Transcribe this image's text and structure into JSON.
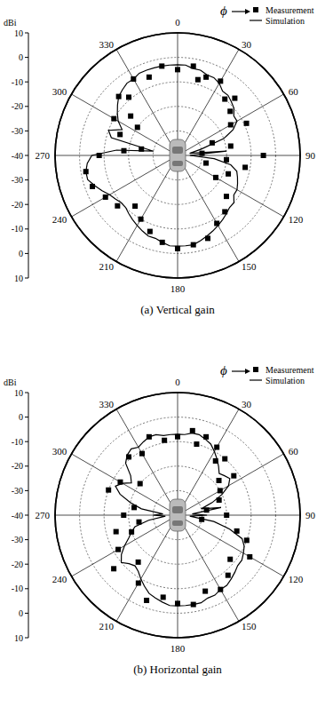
{
  "chart_data": [
    {
      "type": "polar",
      "title": "(a) Vertical gain",
      "angle_label": "ϕ",
      "ylabel": "dBi",
      "xlim": [
        0,
        360
      ],
      "xticks": [
        0,
        30,
        60,
        90,
        120,
        150,
        180,
        210,
        240,
        270,
        300,
        330
      ],
      "ylim": [
        -40,
        10
      ],
      "yticks": [
        -40,
        -30,
        -20,
        -10,
        0,
        10
      ],
      "grid": true,
      "legend": "upper right",
      "series": [
        {
          "name": "Measurement",
          "type": "scatter",
          "marker": "square",
          "color": "#000000",
          "x": [
            0,
            10,
            15,
            20,
            30,
            40,
            45,
            50,
            60,
            65,
            70,
            80,
            85,
            90,
            95,
            100,
            105,
            110,
            120,
            130,
            140,
            150,
            160,
            170,
            180,
            190,
            200,
            210,
            220,
            230,
            240,
            250,
            260,
            270,
            275,
            280,
            290,
            300,
            305,
            310,
            315,
            320,
            330,
            340,
            350
          ],
          "values": [
            -5,
            -3,
            -8,
            -6,
            -5,
            -10,
            -7,
            -12,
            -15,
            -9,
            -25,
            -18,
            -30,
            -5,
            -20,
            -12,
            -28,
            -18,
            -22,
            -14,
            -10,
            -8,
            -4,
            -3,
            -2,
            -4,
            -7,
            -10,
            -13,
            -8,
            -6,
            -3,
            -2,
            -8,
            -18,
            -25,
            -15,
            -10,
            -20,
            -15,
            -6,
            -9,
            -4,
            -6,
            -3
          ]
        },
        {
          "name": "Simulation",
          "type": "line",
          "line_style": "solid",
          "color": "#000000",
          "x": [
            0,
            5,
            10,
            15,
            20,
            25,
            30,
            35,
            40,
            45,
            50,
            55,
            60,
            65,
            70,
            75,
            80,
            85,
            90,
            95,
            100,
            105,
            110,
            115,
            120,
            125,
            130,
            135,
            140,
            145,
            150,
            155,
            160,
            165,
            170,
            175,
            180,
            185,
            190,
            195,
            200,
            205,
            210,
            215,
            220,
            225,
            230,
            235,
            240,
            245,
            250,
            255,
            260,
            265,
            270,
            275,
            280,
            285,
            290,
            295,
            300,
            305,
            310,
            315,
            320,
            325,
            330,
            335,
            340,
            345,
            350,
            355
          ],
          "values": [
            -3,
            -3,
            -4,
            -4,
            -5,
            -5,
            -6,
            -8,
            -8,
            -9,
            -10,
            -12,
            -12,
            -15,
            -20,
            -30,
            -35,
            -20,
            -35,
            -25,
            -18,
            -15,
            -14,
            -13,
            -12,
            -12,
            -10,
            -10,
            -9,
            -8,
            -7,
            -6,
            -5,
            -4,
            -3,
            -3,
            -3,
            -3,
            -4,
            -5,
            -5,
            -6,
            -7,
            -8,
            -9,
            -10,
            -10,
            -9,
            -8,
            -6,
            -4,
            -2,
            -2,
            -3,
            -5,
            -15,
            -30,
            -12,
            -10,
            -15,
            -12,
            -10,
            -8,
            -6,
            -5,
            -4,
            -4,
            -3,
            -3,
            -3,
            -3,
            -3
          ]
        }
      ]
    },
    {
      "type": "polar",
      "title": "(b) Horizontal gain",
      "angle_label": "ϕ",
      "ylabel": "dBi",
      "xlim": [
        0,
        360
      ],
      "xticks": [
        0,
        30,
        60,
        90,
        120,
        150,
        180,
        210,
        240,
        270,
        300,
        330
      ],
      "ylim": [
        -40,
        10
      ],
      "yticks": [
        -40,
        -30,
        -20,
        -10,
        0,
        10
      ],
      "grid": true,
      "legend": "upper right",
      "series": [
        {
          "name": "Measurement",
          "type": "scatter",
          "marker": "square",
          "color": "#000000",
          "x": [
            0,
            10,
            15,
            20,
            30,
            35,
            40,
            50,
            55,
            60,
            70,
            80,
            90,
            100,
            105,
            110,
            120,
            130,
            140,
            150,
            160,
            170,
            180,
            190,
            200,
            210,
            220,
            230,
            240,
            250,
            255,
            260,
            270,
            280,
            290,
            300,
            310,
            320,
            330,
            340,
            350
          ],
          "values": [
            -8,
            -5,
            -10,
            -6,
            -8,
            -13,
            -10,
            -18,
            -12,
            -20,
            -22,
            -28,
            -20,
            -30,
            -15,
            -10,
            -6,
            -12,
            -8,
            -5,
            -7,
            -3,
            -4,
            -6,
            -3,
            -8,
            -15,
            -6,
            -12,
            -20,
            -14,
            -24,
            -18,
            -22,
            -10,
            -13,
            -20,
            -9,
            -11,
            -6,
            -9
          ]
        },
        {
          "name": "Simulation",
          "type": "line",
          "line_style": "solid",
          "color": "#000000",
          "x": [
            0,
            5,
            10,
            15,
            20,
            25,
            30,
            35,
            40,
            45,
            50,
            55,
            60,
            65,
            70,
            75,
            80,
            85,
            90,
            95,
            100,
            105,
            110,
            115,
            120,
            125,
            130,
            135,
            140,
            145,
            150,
            155,
            160,
            165,
            170,
            175,
            180,
            185,
            190,
            195,
            200,
            205,
            210,
            215,
            220,
            225,
            230,
            235,
            240,
            245,
            250,
            255,
            260,
            265,
            270,
            275,
            280,
            285,
            290,
            295,
            300,
            305,
            310,
            315,
            320,
            325,
            330,
            335,
            340,
            345,
            350,
            355
          ],
          "values": [
            -7,
            -7,
            -6,
            -6,
            -7,
            -8,
            -10,
            -12,
            -14,
            -16,
            -15,
            -14,
            -16,
            -20,
            -25,
            -30,
            -22,
            -34,
            -28,
            -35,
            -25,
            -18,
            -12,
            -10,
            -9,
            -8,
            -8,
            -7,
            -6,
            -5,
            -5,
            -4,
            -4,
            -3,
            -3,
            -3,
            -3,
            -3,
            -4,
            -5,
            -6,
            -8,
            -10,
            -12,
            -13,
            -12,
            -10,
            -12,
            -15,
            -18,
            -20,
            -22,
            -28,
            -35,
            -30,
            -34,
            -25,
            -20,
            -15,
            -12,
            -14,
            -17,
            -15,
            -10,
            -8,
            -7,
            -8,
            -7,
            -6,
            -6,
            -7,
            -7
          ]
        }
      ]
    }
  ]
}
